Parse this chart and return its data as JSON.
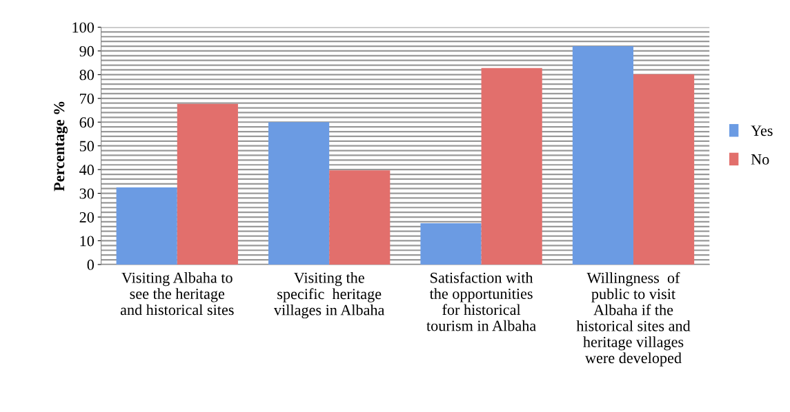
{
  "chart_data": {
    "type": "bar",
    "ylabel": "Percentage %",
    "categories": [
      "Visiting Albaha to\nsee the heritage\nand historical sites",
      "Visiting the\nspecific  heritage\nvillages in Albaha",
      "Satisfaction with\nthe opportunities\nfor historical\ntourism in Albaha",
      "Willingness  of\npublic to visit\nAlbaha if the\nhistorical sites and\nheritage villages\nwere developed"
    ],
    "series": [
      {
        "name": "Yes",
        "color": "#6b9be3",
        "values": [
          32.5,
          60,
          17.4,
          92
        ]
      },
      {
        "name": "No",
        "color": "#e26f6c",
        "values": [
          67.7,
          39.7,
          82.8,
          80.2
        ]
      }
    ],
    "ylim": [
      0,
      100
    ],
    "yticks": [
      0,
      {
        "value": 2,
        "label": null
      },
      {
        "value": 4,
        "label": null
      },
      {
        "value": 6,
        "label": null
      },
      {
        "value": 8,
        "label": null
      },
      10,
      {
        "value": 12,
        "label": null
      },
      {
        "value": 14,
        "label": null
      },
      {
        "value": 16,
        "label": null
      },
      {
        "value": 18,
        "label": null
      },
      20,
      {
        "value": 22,
        "label": null
      },
      {
        "value": 24,
        "label": null
      },
      {
        "value": 26,
        "label": null
      },
      {
        "value": 28,
        "label": null
      },
      30,
      {
        "value": 32,
        "label": null
      },
      {
        "value": 34,
        "label": null
      },
      {
        "value": 36,
        "label": null
      },
      {
        "value": 38,
        "label": null
      },
      40,
      {
        "value": 42,
        "label": null
      },
      {
        "value": 44,
        "label": null
      },
      {
        "value": 46,
        "label": null
      },
      {
        "value": 48,
        "label": null
      },
      50,
      {
        "value": 52,
        "label": null
      },
      {
        "value": 54,
        "label": null
      },
      {
        "value": 56,
        "label": null
      },
      {
        "value": 58,
        "label": null
      },
      60,
      {
        "value": 62,
        "label": null
      },
      {
        "value": 64,
        "label": null
      },
      {
        "value": 66,
        "label": null
      },
      {
        "value": 68,
        "label": null
      },
      70,
      {
        "value": 72,
        "label": null
      },
      {
        "value": 74,
        "label": null
      },
      {
        "value": 76,
        "label": null
      },
      {
        "value": 78,
        "label": null
      },
      80,
      {
        "value": 82,
        "label": null
      },
      {
        "value": 84,
        "label": null
      },
      {
        "value": 86,
        "label": null
      },
      {
        "value": 88,
        "label": null
      },
      90,
      {
        "value": 92,
        "label": null
      },
      {
        "value": 94,
        "label": null
      },
      {
        "value": 96,
        "label": null
      },
      {
        "value": 98,
        "label": null
      },
      100
    ],
    "grid": "y",
    "legend": "right"
  }
}
